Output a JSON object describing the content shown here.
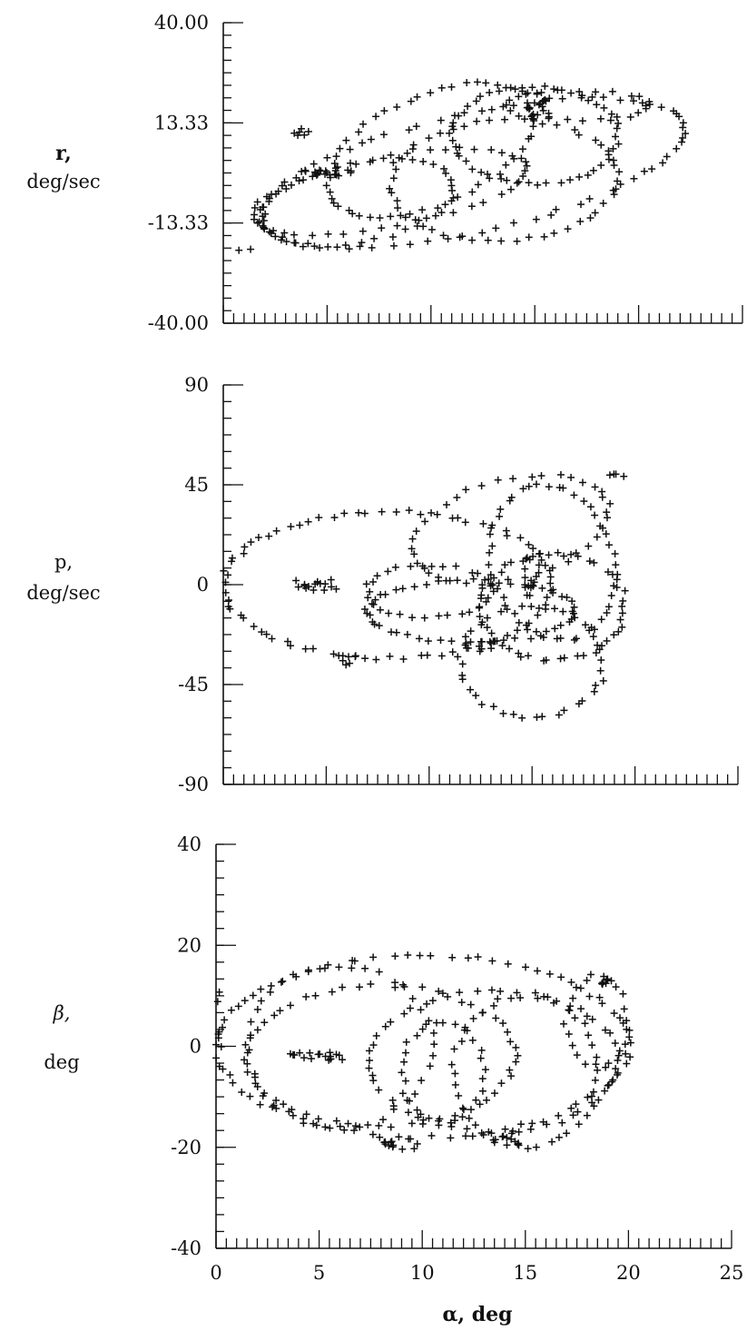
{
  "chart_data": [
    {
      "type": "scatter",
      "id": "r",
      "ylabel_line1": "r,",
      "ylabel_line2": "deg/sec",
      "xlim": [
        0,
        25
      ],
      "ylim": [
        -40,
        40
      ],
      "yticks": [
        40,
        13.33,
        -13.33,
        -40
      ],
      "ytick_labels": [
        "40.00",
        "13.33",
        "-13.33",
        "-40.00"
      ],
      "marker": "+",
      "grid": false,
      "series": [
        {
          "loops": [
            {
              "cx": 12,
              "cy": 0,
              "rx": 11,
              "ry": 15,
              "rot": 0.42,
              "n": 75
            },
            {
              "cx": 10,
              "cy": 6,
              "rx": 6.5,
              "ry": 12,
              "rot": 0.9,
              "n": 55
            },
            {
              "cx": 15,
              "cy": 10,
              "rx": 4,
              "ry": 13,
              "rot": 0.2,
              "n": 50
            },
            {
              "cx": 8,
              "cy": -5,
              "rx": 7,
              "ry": 9,
              "rot": 0.35,
              "n": 45
            },
            {
              "cx": 17,
              "cy": 18,
              "rx": 3.5,
              "ry": 4,
              "rot": 0,
              "n": 25
            },
            {
              "cx": 6.5,
              "cy": -8,
              "rx": 5,
              "ry": 10,
              "rot": 0.5,
              "n": 40
            },
            {
              "cx": 13.5,
              "cy": -2,
              "rx": 5.5,
              "ry": 16,
              "rot": 0.3,
              "n": 50
            }
          ],
          "clusters": [
            {
              "x": 5,
              "y": 0,
              "dx": 1.3,
              "dy": 0.8,
              "n": 18
            },
            {
              "x": 15.2,
              "y": 18,
              "dx": 0.6,
              "dy": 4,
              "n": 18
            },
            {
              "x": 3.8,
              "y": 11,
              "dx": 0.4,
              "dy": 1,
              "n": 6
            },
            {
              "x": 0.5,
              "y": -21,
              "dx": 1,
              "dy": 0.8,
              "n": 6
            }
          ]
        }
      ]
    },
    {
      "type": "scatter",
      "id": "p",
      "ylabel_line1": "p,",
      "ylabel_line2": "deg/sec",
      "xlim": [
        0,
        25
      ],
      "ylim": [
        -90,
        90
      ],
      "yticks": [
        90,
        45,
        0,
        -45,
        -90
      ],
      "ytick_labels": [
        "90",
        "45",
        "0",
        "-45",
        "-90"
      ],
      "marker": "+",
      "grid": false,
      "series": [
        {
          "loops": [
            {
              "cx": 8,
              "cy": 0,
              "rx": 8,
              "ry": 33,
              "rot": 0,
              "n": 80
            },
            {
              "cx": 12,
              "cy": -12,
              "rx": 5,
              "ry": 14,
              "rot": 0,
              "n": 50
            },
            {
              "cx": 16,
              "cy": -10,
              "rx": 3.5,
              "ry": 24,
              "rot": 0,
              "n": 50
            },
            {
              "cx": 15,
              "cy": -35,
              "rx": 3.5,
              "ry": 25,
              "rot": 0,
              "n": 40
            },
            {
              "cx": 16,
              "cy": 10,
              "rx": 3,
              "ry": 35,
              "rot": 0.15,
              "n": 45
            },
            {
              "cx": 10,
              "cy": -3,
              "rx": 3,
              "ry": 12,
              "rot": 0,
              "n": 30
            },
            {
              "cx": 14,
              "cy": 25,
              "rx": 5,
              "ry": 22,
              "rot": 0.4,
              "n": 40
            }
          ],
          "clusters": [
            {
              "x": 4.5,
              "y": 0,
              "dx": 1,
              "dy": 2.5,
              "n": 16
            },
            {
              "x": 15,
              "y": 5,
              "dx": 0.4,
              "dy": 10,
              "n": 14
            },
            {
              "x": 6,
              "y": -34,
              "dx": 0.5,
              "dy": 3,
              "n": 6
            },
            {
              "x": 12.5,
              "y": -28,
              "dx": 0.7,
              "dy": 3,
              "n": 8
            },
            {
              "x": 19,
              "y": 50,
              "dx": 0.5,
              "dy": 2,
              "n": 4
            }
          ]
        }
      ]
    },
    {
      "type": "scatter",
      "id": "beta",
      "ylabel_line1": "β,",
      "ylabel_line2": "deg",
      "xlabel": "α, deg",
      "xlim": [
        0,
        25
      ],
      "ylim": [
        -40,
        40
      ],
      "yticks": [
        40,
        20,
        0,
        -20,
        -40
      ],
      "ytick_labels": [
        "40",
        "20",
        "0",
        "-20",
        "-40"
      ],
      "xticks": [
        0,
        5,
        10,
        15,
        20,
        25
      ],
      "xtick_labels": [
        "0",
        "5",
        "10",
        "15",
        "20",
        "25"
      ],
      "marker": "+",
      "grid": false,
      "series": [
        {
          "loops": [
            {
              "cx": 10,
              "cy": 0,
              "rx": 10,
              "ry": 18,
              "rot": 0,
              "n": 85
            },
            {
              "cx": 8,
              "cy": -2,
              "rx": 6.5,
              "ry": 14,
              "rot": 0,
              "n": 55
            },
            {
              "cx": 13.5,
              "cy": -3,
              "rx": 6,
              "ry": 14,
              "rot": 0,
              "n": 55
            },
            {
              "cx": 15,
              "cy": -5,
              "rx": 3.5,
              "ry": 15,
              "rot": 0,
              "n": 40
            },
            {
              "cx": 11,
              "cy": -5,
              "rx": 2,
              "ry": 10,
              "rot": 0,
              "n": 30
            },
            {
              "cx": 6,
              "cy": 0,
              "rx": 4.5,
              "ry": 16,
              "rot": 0,
              "n": 40
            },
            {
              "cx": 18.5,
              "cy": 5,
              "rx": 1.5,
              "ry": 9,
              "rot": 0,
              "n": 22
            }
          ],
          "clusters": [
            {
              "x": 5,
              "y": -2,
              "dx": 1.4,
              "dy": 0.8,
              "n": 18
            },
            {
              "x": 9,
              "y": -19,
              "dx": 0.9,
              "dy": 1.5,
              "n": 12
            },
            {
              "x": 14,
              "y": -18,
              "dx": 0.7,
              "dy": 1.5,
              "n": 10
            },
            {
              "x": 19,
              "y": 13,
              "dx": 0.4,
              "dy": 1,
              "n": 6
            },
            {
              "x": 0.2,
              "y": 5,
              "dx": 0.3,
              "dy": 6,
              "n": 6
            }
          ]
        }
      ]
    }
  ]
}
